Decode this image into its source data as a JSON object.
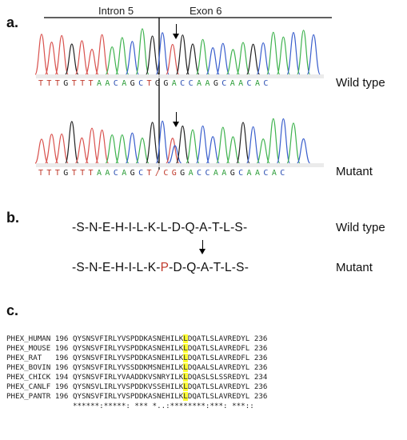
{
  "panel_a": {
    "label": "a.",
    "intron_label": "Intron 5",
    "exon_label": "Exon 6",
    "wt_label": "Wild type",
    "mut_label": "Mutant",
    "wt_sequence": [
      {
        "b": "T",
        "c": "#c0392b"
      },
      {
        "b": "T",
        "c": "#c0392b"
      },
      {
        "b": "T",
        "c": "#c0392b"
      },
      {
        "b": "G",
        "c": "#222"
      },
      {
        "b": "T",
        "c": "#c0392b"
      },
      {
        "b": "T",
        "c": "#c0392b"
      },
      {
        "b": "T",
        "c": "#c0392b"
      },
      {
        "b": "A",
        "c": "#2e9e3a"
      },
      {
        "b": "A",
        "c": "#2e9e3a"
      },
      {
        "b": "C",
        "c": "#2c4fb3"
      },
      {
        "b": "A",
        "c": "#2e9e3a"
      },
      {
        "b": "G",
        "c": "#222"
      },
      {
        "b": "C",
        "c": "#2c4fb3"
      },
      {
        "b": "T",
        "c": "#c0392b"
      },
      {
        "b": "G",
        "c": "#222"
      },
      {
        "b": "G",
        "c": "#222"
      },
      {
        "b": "A",
        "c": "#2e9e3a"
      },
      {
        "b": "C",
        "c": "#2c4fb3"
      },
      {
        "b": "C",
        "c": "#2c4fb3"
      },
      {
        "b": "A",
        "c": "#2e9e3a"
      },
      {
        "b": "A",
        "c": "#2e9e3a"
      },
      {
        "b": "G",
        "c": "#222"
      },
      {
        "b": "C",
        "c": "#2c4fb3"
      },
      {
        "b": "A",
        "c": "#2e9e3a"
      },
      {
        "b": "A",
        "c": "#2e9e3a"
      },
      {
        "b": "C",
        "c": "#2c4fb3"
      },
      {
        "b": "A",
        "c": "#2e9e3a"
      },
      {
        "b": "C",
        "c": "#2c4fb3"
      }
    ],
    "mut_sequence": [
      {
        "b": "T",
        "c": "#c0392b"
      },
      {
        "b": "T",
        "c": "#c0392b"
      },
      {
        "b": "T",
        "c": "#c0392b"
      },
      {
        "b": "G",
        "c": "#222"
      },
      {
        "b": "T",
        "c": "#c0392b"
      },
      {
        "b": "T",
        "c": "#c0392b"
      },
      {
        "b": "T",
        "c": "#c0392b"
      },
      {
        "b": "A",
        "c": "#2e9e3a"
      },
      {
        "b": "A",
        "c": "#2e9e3a"
      },
      {
        "b": "C",
        "c": "#2c4fb3"
      },
      {
        "b": "A",
        "c": "#2e9e3a"
      },
      {
        "b": "G",
        "c": "#222"
      },
      {
        "b": "C",
        "c": "#2c4fb3"
      },
      {
        "b": "T/CG",
        "c": "#c0392b"
      },
      {
        "b": "G",
        "c": "#222"
      },
      {
        "b": "A",
        "c": "#2e9e3a"
      },
      {
        "b": "C",
        "c": "#2c4fb3"
      },
      {
        "b": "C",
        "c": "#2c4fb3"
      },
      {
        "b": "A",
        "c": "#2e9e3a"
      },
      {
        "b": "A",
        "c": "#2e9e3a"
      },
      {
        "b": "G",
        "c": "#222"
      },
      {
        "b": "C",
        "c": "#2c4fb3"
      },
      {
        "b": "A",
        "c": "#2e9e3a"
      },
      {
        "b": "A",
        "c": "#2e9e3a"
      },
      {
        "b": "C",
        "c": "#2c4fb3"
      },
      {
        "b": "A",
        "c": "#2e9e3a"
      },
      {
        "b": "C",
        "c": "#2c4fb3"
      }
    ],
    "trace_colors": {
      "T": "#d9534f",
      "G": "#222222",
      "A": "#3fb34f",
      "C": "#3a5fcd"
    }
  },
  "panel_b": {
    "label": "b.",
    "wt_protein": "-S-N-E-H-I-L-K-L-D-Q-A-T-L-S-",
    "mut_before": "-S-N-E-H-I-L-K-",
    "mut_residue": "P",
    "mut_after": "-D-Q-A-T-L-S-",
    "wt_label": "Wild type",
    "mut_label": "Mutant"
  },
  "panel_c": {
    "label": "c.",
    "rows": [
      {
        "name": "PHEX_HUMAN",
        "start": "196",
        "pre": "QYSNSVFIRLYVSPDDKASNEHILK",
        "hl": "L",
        "post": "DQATLSLAVREDYL",
        "end": "236"
      },
      {
        "name": "PHEX_MOUSE",
        "start": "196",
        "pre": "QYSNSVFIRLYVSPDDKASNEHILK",
        "hl": "L",
        "post": "DQATLSLAVREDFL",
        "end": "236"
      },
      {
        "name": "PHEX_RAT",
        "start": "196",
        "pre": "QYSNSVFIRLYVSPDDKASNEHILK",
        "hl": "L",
        "post": "DQATLSLAVREDFL",
        "end": "236"
      },
      {
        "name": "PHEX_BOVIN",
        "start": "196",
        "pre": "QYSNSVFIRLYVSSDDKMSNEHILK",
        "hl": "L",
        "post": "DQAALSLAVREDYL",
        "end": "236"
      },
      {
        "name": "PHEX_CHICK",
        "start": "194",
        "pre": "QYSNSVFIRLYVAADDKVSNRYILK",
        "hl": "L",
        "post": "DQASLSLSSREDYL",
        "end": "234"
      },
      {
        "name": "PHEX_CANLF",
        "start": "196",
        "pre": "QYSNSVLIRLYVSPDDKVSSEHILK",
        "hl": "L",
        "post": "DQATLSLAVREDYL",
        "end": "236"
      },
      {
        "name": "PHEX_PANTR",
        "start": "196",
        "pre": "QYSNSVFIRLYVSPDDKASNEHILK",
        "hl": "L",
        "post": "DQATLSLAVREDYL",
        "end": "236"
      }
    ],
    "consensus": "******:*****: *** *..:********:***: ***::"
  }
}
